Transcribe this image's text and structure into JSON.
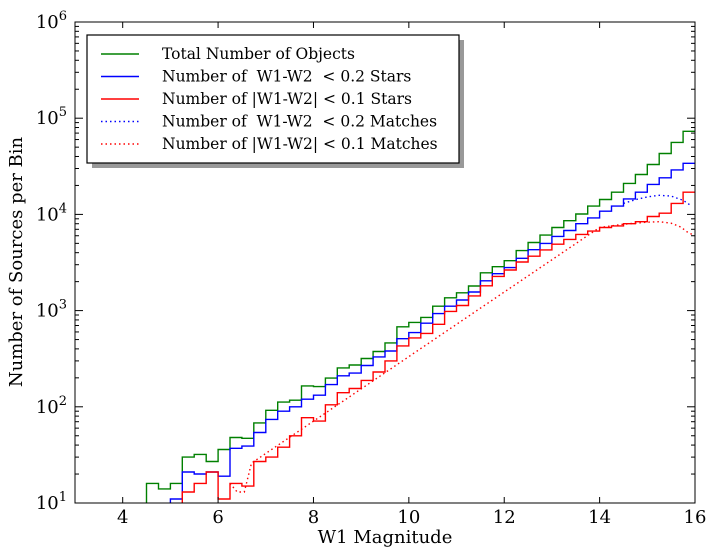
{
  "chart_data": {
    "type": "line",
    "title": "",
    "xlabel": "W1 Magnitude",
    "ylabel": "Number of Sources per Bin",
    "xlim": [
      3,
      16
    ],
    "ylim": [
      10,
      1000000
    ],
    "yscale": "log",
    "grid": false,
    "legend_position": "top-left",
    "x_ticks": [
      4,
      6,
      8,
      10,
      12,
      14,
      16
    ],
    "x_tick_labels": [
      "4",
      "6",
      "8",
      "10",
      "12",
      "14",
      "16"
    ],
    "y_ticks": [
      10,
      100,
      1000,
      10000,
      100000,
      1000000
    ],
    "y_tick_labels": [
      {
        "base": "10",
        "exp": "1"
      },
      {
        "base": "10",
        "exp": "2"
      },
      {
        "base": "10",
        "exp": "3"
      },
      {
        "base": "10",
        "exp": "4"
      },
      {
        "base": "10",
        "exp": "5"
      },
      {
        "base": "10",
        "exp": "6"
      }
    ],
    "series": [
      {
        "name": "Total Number of Objects",
        "color": "#008000",
        "style": "steps-solid",
        "x": [
          4.5,
          4.75,
          5.0,
          5.25,
          5.5,
          5.75,
          6.0,
          6.25,
          6.5,
          6.75,
          7.0,
          7.25,
          7.5,
          7.75,
          8.0,
          8.25,
          8.5,
          8.75,
          9.0,
          9.25,
          9.5,
          9.75,
          10.0,
          10.25,
          10.5,
          10.75,
          11.0,
          11.25,
          11.5,
          11.75,
          12.0,
          12.25,
          12.5,
          12.75,
          13.0,
          13.25,
          13.5,
          13.75,
          14.0,
          14.25,
          14.5,
          14.75,
          15.0,
          15.25,
          15.5,
          15.75
        ],
        "values": [
          16,
          14,
          16,
          30,
          32,
          27,
          36,
          48,
          47,
          68,
          92,
          112,
          117,
          165,
          162,
          199,
          254,
          272,
          318,
          376,
          462,
          679,
          754,
          850,
          1110,
          1360,
          1530,
          1800,
          2470,
          2860,
          3300,
          4200,
          5100,
          6100,
          7300,
          8600,
          10100,
          12200,
          14300,
          17000,
          21000,
          26000,
          33000,
          43000,
          56000,
          73000
        ]
      },
      {
        "name": "Number of  W1-W2  < 0.2 Stars",
        "color": "#0000ff",
        "style": "steps-solid",
        "x": [
          5.0,
          5.25,
          5.5,
          5.75,
          6.0,
          6.25,
          6.5,
          6.75,
          7.0,
          7.25,
          7.5,
          7.75,
          8.0,
          8.25,
          8.5,
          8.75,
          9.0,
          9.25,
          9.5,
          9.75,
          10.0,
          10.25,
          10.5,
          10.75,
          11.0,
          11.25,
          11.5,
          11.75,
          12.0,
          12.25,
          12.5,
          12.75,
          13.0,
          13.25,
          13.5,
          13.75,
          14.0,
          14.25,
          14.5,
          14.75,
          15.0,
          15.25,
          15.5,
          15.75
        ],
        "values": [
          11,
          21,
          20,
          21,
          19,
          37,
          39,
          54,
          74,
          90,
          100,
          120,
          132,
          170,
          210,
          224,
          269,
          330,
          380,
          510,
          590,
          740,
          930,
          1110,
          1290,
          1560,
          2040,
          2420,
          2800,
          3500,
          4300,
          5000,
          5900,
          6800,
          8000,
          9200,
          10800,
          12200,
          14500,
          17000,
          20500,
          24000,
          29000,
          34000
        ]
      },
      {
        "name": "Number of |W1-W2| < 0.1 Stars",
        "color": "#ff0000",
        "style": "steps-solid",
        "x": [
          5.25,
          5.5,
          5.75,
          6.0,
          6.25,
          6.5,
          6.75,
          7.0,
          7.25,
          7.5,
          7.75,
          8.0,
          8.25,
          8.5,
          8.75,
          9.0,
          9.25,
          9.5,
          9.75,
          10.0,
          10.25,
          10.5,
          10.75,
          11.0,
          11.25,
          11.5,
          11.75,
          12.0,
          12.25,
          12.5,
          12.75,
          13.0,
          13.25,
          13.5,
          13.75,
          14.0,
          14.25,
          14.5,
          14.75,
          15.0,
          15.25,
          15.5,
          15.75
        ],
        "values": [
          13,
          16,
          21,
          11,
          16,
          15,
          27,
          30,
          38,
          50,
          77,
          71,
          105,
          140,
          155,
          188,
          230,
          300,
          430,
          520,
          580,
          720,
          980,
          1130,
          1420,
          1810,
          2270,
          2640,
          3200,
          3680,
          4280,
          4900,
          5500,
          6200,
          6700,
          7300,
          7600,
          8000,
          8400,
          9500,
          10300,
          13000,
          17000
        ]
      },
      {
        "name": "Number of  W1-W2  < 0.2 Matches",
        "color": "#0000ff",
        "style": "dotted",
        "x": [
          14.5,
          14.75,
          15.0,
          15.25,
          15.5,
          15.75,
          15.9
        ],
        "values": [
          13000,
          14200,
          15200,
          15800,
          15500,
          14000,
          12500
        ]
      },
      {
        "name": "Number of |W1-W2| < 0.1 Matches",
        "color": "#ff0000",
        "style": "dotted",
        "x": [
          6.25,
          6.4,
          6.55,
          6.7,
          14.0,
          14.25,
          14.5,
          14.75,
          15.0,
          15.25,
          15.5,
          15.7,
          15.85,
          16.0
        ],
        "values": [
          16,
          13,
          13,
          26,
          7300,
          7600,
          7900,
          8100,
          8300,
          8400,
          8100,
          7400,
          6500,
          6000
        ]
      }
    ]
  }
}
